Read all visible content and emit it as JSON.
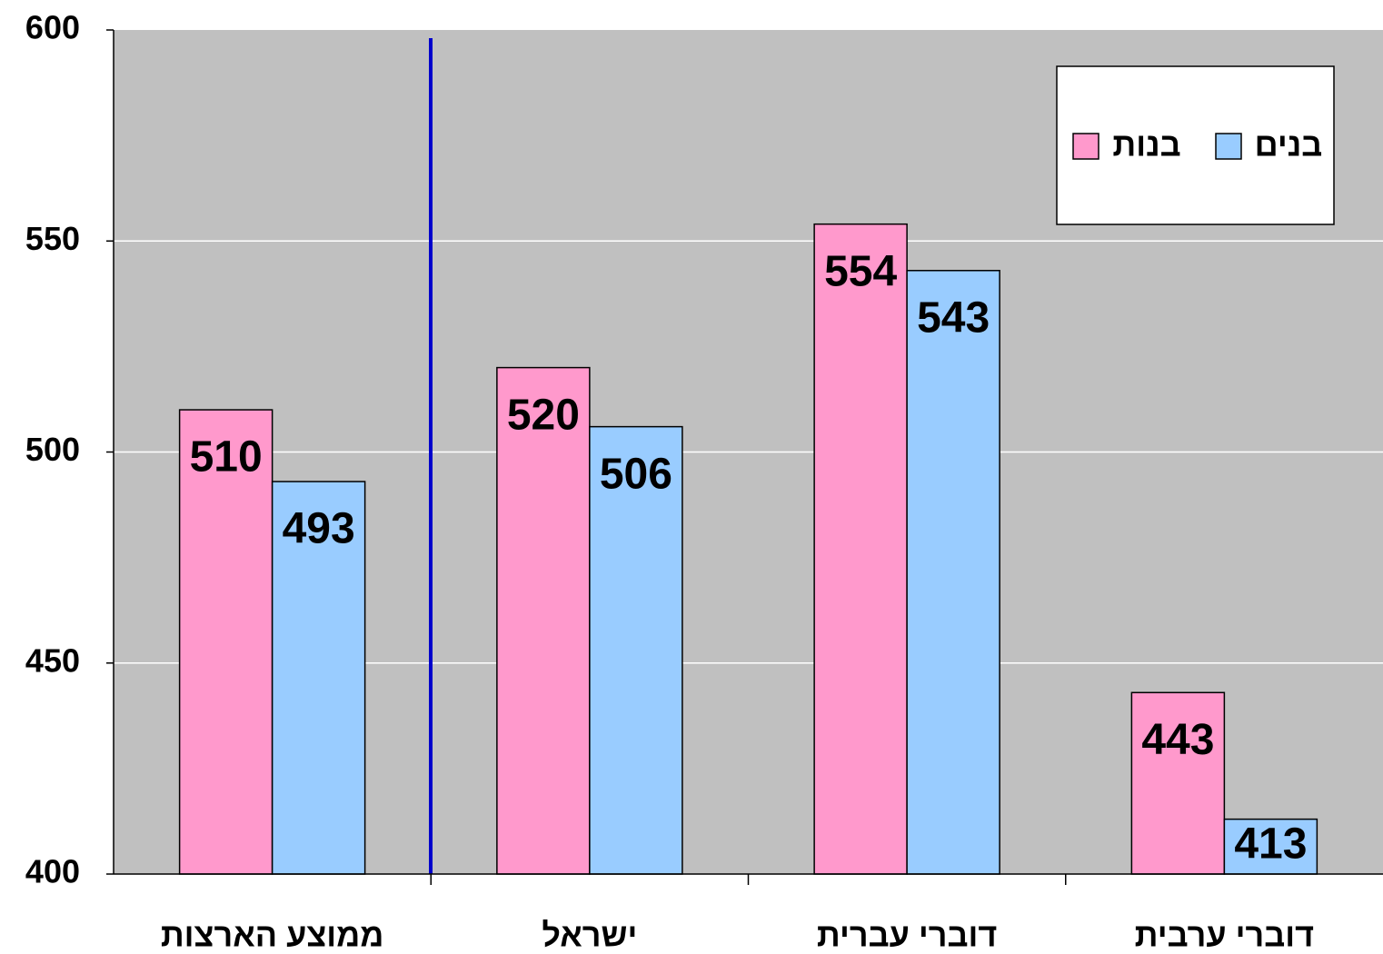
{
  "chart_data": {
    "type": "bar",
    "categories": [
      "ממוצע הארצות",
      "ישראל",
      "דוברי עברית",
      "דוברי ערבית"
    ],
    "series": [
      {
        "name": "בנות",
        "color": "#ff99cc",
        "values": [
          510,
          520,
          554,
          443
        ]
      },
      {
        "name": "בנים",
        "color": "#99ccff",
        "values": [
          493,
          506,
          543,
          413
        ]
      }
    ],
    "ylim": [
      400,
      600
    ],
    "yticks": [
      400,
      450,
      500,
      550,
      600
    ],
    "grid": true,
    "legend": "upper right"
  }
}
